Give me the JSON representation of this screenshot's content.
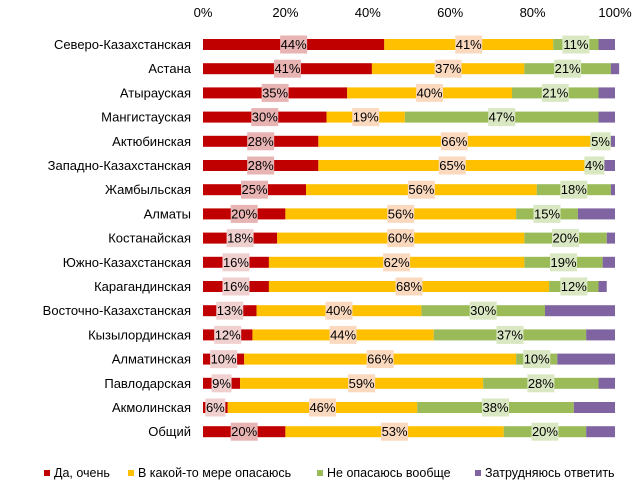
{
  "chart_data": {
    "type": "bar",
    "orientation": "horizontal",
    "stacked": true,
    "normalized": true,
    "categories": [
      "Северо-Казахстанская",
      "Астана",
      "Атырауская",
      "Мангистауская",
      "Актюбинская",
      "Западно-Казахстанская",
      "Жамбыльская",
      "Алматы",
      "Костанайская",
      "Южно-Казахстанская",
      "Карагандинская",
      "Восточно-Казахстанская",
      "Кызылординская",
      "Алматинская",
      "Павлодарская",
      "Акмолинская",
      "Общий"
    ],
    "series": [
      {
        "name": "Да, очень",
        "color": "#C00000",
        "values": [
          44,
          41,
          35,
          30,
          28,
          28,
          25,
          20,
          18,
          16,
          16,
          13,
          12,
          10,
          9,
          6,
          20
        ],
        "show_labels": true
      },
      {
        "name": "В какой-то мере опасаюсь",
        "color": "#FFC000",
        "values": [
          41,
          37,
          40,
          19,
          66,
          65,
          56,
          56,
          60,
          62,
          68,
          40,
          44,
          66,
          59,
          46,
          53
        ],
        "show_labels": true
      },
      {
        "name": "Не опасаюсь вообще",
        "color": "#9BBB59",
        "values": [
          11,
          21,
          21,
          47,
          5,
          4,
          18,
          15,
          20,
          19,
          12,
          30,
          37,
          10,
          28,
          38,
          20
        ],
        "show_labels": true
      },
      {
        "name": "Затрудняюсь ответить",
        "color": "#8064A2",
        "values": [
          4,
          2,
          4,
          4,
          1,
          3,
          1,
          9,
          2,
          3,
          2,
          17,
          7,
          14,
          4,
          10,
          7
        ],
        "show_labels": false
      }
    ],
    "label_suffix": "%",
    "xlim": [
      0,
      100
    ],
    "xticks": [
      "0%",
      "20%",
      "40%",
      "60%",
      "80%",
      "100%"
    ],
    "x_axis_position": "top",
    "grid": false,
    "legend_position": "bottom",
    "title": "",
    "xlabel": "",
    "ylabel": ""
  }
}
